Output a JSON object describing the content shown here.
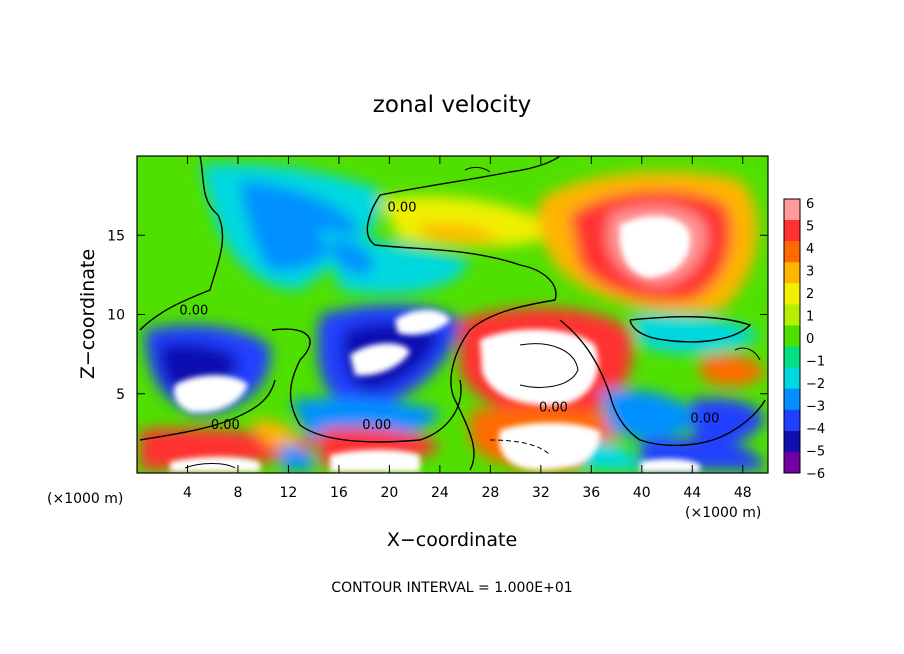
{
  "chart_data": {
    "type": "heatmap",
    "title": "zonal velocity",
    "xlabel": "X−coordinate",
    "ylabel": "Z−coordinate",
    "x_unit_label": "(×1000 m)",
    "y_unit_label": "(×1000 m)",
    "footer": "CONTOUR INTERVAL = 1.000E+01",
    "xlim": [
      0,
      50
    ],
    "ylim": [
      0,
      20
    ],
    "x_ticks": [
      4,
      8,
      12,
      16,
      20,
      24,
      28,
      32,
      36,
      40,
      44,
      48
    ],
    "x_tick_labels": [
      "4",
      "8",
      "12",
      "16",
      "20",
      "24",
      "28",
      "32",
      "36",
      "40",
      "44",
      "48"
    ],
    "y_ticks": [
      5,
      10,
      15
    ],
    "y_tick_labels": [
      "5",
      "10",
      "15"
    ],
    "contour_labels": [
      {
        "text": "0.00",
        "x": 21,
        "y": 16.8
      },
      {
        "text": "0.00",
        "x": 4.5,
        "y": 10.3
      },
      {
        "text": "0.00",
        "x": 7,
        "y": 3.1
      },
      {
        "text": "0.00",
        "x": 19,
        "y": 3.1
      },
      {
        "text": "0.00",
        "x": 33,
        "y": 4.2
      },
      {
        "text": "0.00",
        "x": 45,
        "y": 3.5
      }
    ],
    "colorbar": {
      "ticks": [
        6,
        5,
        4,
        3,
        2,
        1,
        0,
        -1,
        -2,
        -3,
        -4,
        -5,
        -6
      ],
      "tick_labels": [
        "6",
        "5",
        "4",
        "3",
        "2",
        "1",
        "0",
        "−1",
        "−2",
        "−3",
        "−4",
        "−5",
        "−6"
      ],
      "colors": [
        "#ff9a9a",
        "#ff3030",
        "#ff6a00",
        "#ffb400",
        "#f0f000",
        "#b4f000",
        "#50e000",
        "#00e080",
        "#00d8e0",
        "#0090ff",
        "#2040ff",
        "#1010b0",
        "#7000a0"
      ]
    }
  }
}
